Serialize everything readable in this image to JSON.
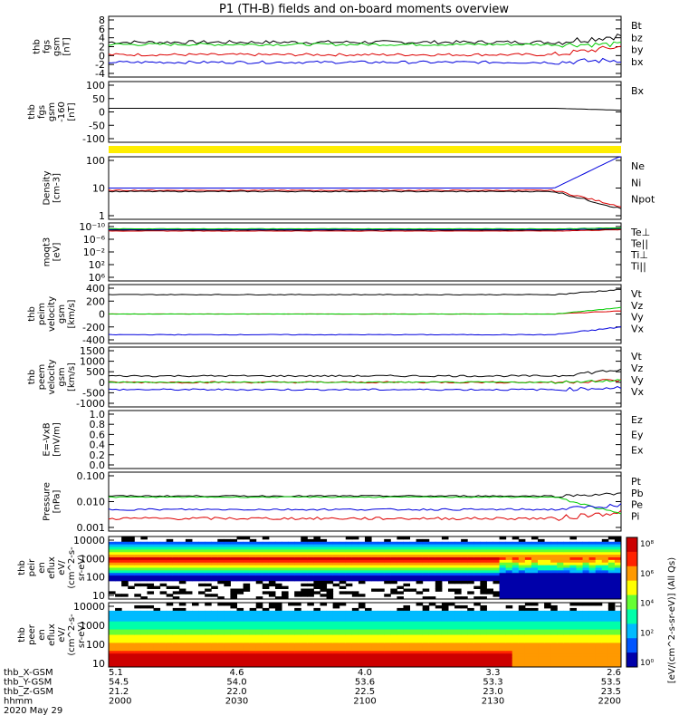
{
  "title": "P1 (TH-B) fields and on-board moments overview",
  "colors": {
    "black": "#000000",
    "red": "#dd0000",
    "green": "#00cc00",
    "blue": "#0000dd",
    "yellow": "#ffee00"
  },
  "chart_data": [
    {
      "id": "fgs",
      "type": "line",
      "ylabel": [
        "thb",
        "fgs",
        "gsm",
        "[nT]"
      ],
      "yticks": [
        "-4",
        "-2",
        "0",
        "2",
        "4",
        "6",
        "8"
      ],
      "ylim": [
        -4,
        8
      ],
      "series": [
        {
          "name": "Bt",
          "color": "black",
          "level": 3,
          "noise": 0.4,
          "end": 4.5
        },
        {
          "name": "bz",
          "color": "red",
          "level": 0.2,
          "noise": 0.3,
          "end": 2.0
        },
        {
          "name": "by",
          "color": "green",
          "level": 2.5,
          "noise": 0.3,
          "end": 2.5
        },
        {
          "name": "bx",
          "color": "blue",
          "level": -1.5,
          "noise": 0.3,
          "end": -1.0
        }
      ]
    },
    {
      "id": "fgs_dsl",
      "type": "line",
      "ylabel": [
        "thb",
        "fgs",
        "gsm",
        "-160",
        "[nT]"
      ],
      "yticks": [
        "-100",
        "-50",
        "0",
        "50",
        "100"
      ],
      "ylim": [
        -120,
        100
      ],
      "series": [
        {
          "name": "Bx",
          "color": "black",
          "level": 5,
          "noise": 0,
          "end": -3
        }
      ]
    },
    {
      "id": "density",
      "type": "line",
      "ylabel": [
        "Density",
        "[cm-3]"
      ],
      "yticks": [
        "1",
        "10",
        "100"
      ],
      "ylim": [
        0,
        2.4
      ],
      "log": true,
      "series": [
        {
          "name": "Ne",
          "color": "red",
          "level": 1.1,
          "noise": 0.02,
          "end": 0.4
        },
        {
          "name": "Ni",
          "color": "black",
          "level": 1.05,
          "noise": 0.02,
          "end": 0.3
        },
        {
          "name": "Npot",
          "color": "blue",
          "level": 1.2,
          "noise": 0,
          "end": 2.6
        }
      ]
    },
    {
      "id": "temp",
      "type": "line",
      "ylabel": [
        "moqt3",
        "[eV]"
      ],
      "yticks": [
        "10⁶",
        "10²",
        "10⁻²",
        "10⁻⁶",
        "10⁻¹⁰"
      ],
      "ylim": [
        -12,
        4
      ],
      "series": [
        {
          "name": "Te⊥",
          "color": "red",
          "level": 2.6,
          "noise": 0.05,
          "end": 3
        },
        {
          "name": "Te||",
          "color": "black",
          "level": 2.9,
          "noise": 0.05,
          "end": 3.2
        },
        {
          "name": "Ti⊥",
          "color": "blue",
          "level": 3.1,
          "noise": 0.05,
          "end": 3.5
        },
        {
          "name": "Ti||",
          "color": "green",
          "level": 3.3,
          "noise": 0.05,
          "end": 3.6
        }
      ]
    },
    {
      "id": "peim",
      "type": "line",
      "ylabel": [
        "thb",
        "peim",
        "velocity",
        "gsm",
        "[km/s]"
      ],
      "yticks": [
        "-400",
        "-200",
        "0",
        "200",
        "400"
      ],
      "ylim": [
        -400,
        400
      ],
      "series": [
        {
          "name": "Vt",
          "color": "black",
          "level": 300,
          "noise": 5,
          "end": 380
        },
        {
          "name": "Vz",
          "color": "red",
          "level": 0,
          "noise": 2,
          "end": 50
        },
        {
          "name": "Vy",
          "color": "green",
          "level": 0,
          "noise": 2,
          "end": 100
        },
        {
          "name": "Vx",
          "color": "blue",
          "level": -320,
          "noise": 5,
          "end": -200
        }
      ]
    },
    {
      "id": "peem",
      "type": "line",
      "ylabel": [
        "thb",
        "peem",
        "velocity",
        "gsm",
        "[km/s]"
      ],
      "yticks": [
        "-1000",
        "-500",
        "0",
        "500",
        "1000",
        "1500"
      ],
      "ylim": [
        -1000,
        1500
      ],
      "series": [
        {
          "name": "Vt",
          "color": "black",
          "level": 300,
          "noise": 40,
          "end": 600
        },
        {
          "name": "Vz",
          "color": "red",
          "level": 0,
          "noise": 40,
          "end": 100
        },
        {
          "name": "Vy",
          "color": "green",
          "level": 0,
          "noise": 30,
          "end": 100
        },
        {
          "name": "Vx",
          "color": "blue",
          "level": -350,
          "noise": 40,
          "end": -250
        }
      ]
    },
    {
      "id": "efield",
      "type": "line",
      "ylabel": [
        "E=-VxB",
        "[mV/m]"
      ],
      "yticks": [
        "0.0",
        "0.2",
        "0.4",
        "0.6",
        "0.8",
        "1.0"
      ],
      "ylim": [
        0,
        1
      ],
      "series": [
        {
          "name": "Ez",
          "color": "red",
          "level": null
        },
        {
          "name": "Ey",
          "color": "green",
          "level": null
        },
        {
          "name": "Ex",
          "color": "blue",
          "level": null
        }
      ]
    },
    {
      "id": "pressure",
      "type": "line",
      "ylabel": [
        "Pressure",
        "[nPa]"
      ],
      "yticks": [
        "0.001",
        "0.010",
        "0.100"
      ],
      "ylim": [
        -3,
        -0.7
      ],
      "log": true,
      "series": [
        {
          "name": "Pt",
          "color": "black",
          "level": -1.6,
          "noise": 0.03,
          "end": -1.5
        },
        {
          "name": "Pb",
          "color": "red",
          "level": -2.6,
          "noise": 0.06,
          "end": -2.3
        },
        {
          "name": "Pe",
          "color": "green",
          "level": -1.65,
          "noise": 0.02,
          "end": -2.4
        },
        {
          "name": "Pi",
          "color": "blue",
          "level": -2.2,
          "noise": 0.04,
          "end": -2.0
        }
      ]
    },
    {
      "id": "peir_eflux",
      "type": "heatmap",
      "ylabel": [
        "thb",
        "peir",
        "en",
        "eflux",
        "eV/",
        "(cm^2-s-",
        "sr-eV)"
      ],
      "yticks": [
        "10",
        "100",
        "1000",
        "10000"
      ],
      "ylim": [
        5,
        20000
      ],
      "log": true
    },
    {
      "id": "peer_eflux",
      "type": "heatmap",
      "ylabel": [
        "thb",
        "peer",
        "en",
        "eflux",
        "eV/",
        "(cm^2-s-",
        "sr-eV)"
      ],
      "yticks": [
        "10",
        "100",
        "1000",
        "10000"
      ],
      "ylim": [
        5,
        20000
      ],
      "log": true
    }
  ],
  "colorbar": {
    "label": "[eV/(cm^2-s-sr-eV)] (All Qs)",
    "ticks": [
      "10⁸",
      "10⁶",
      "10⁴",
      "10²",
      "10⁰"
    ]
  },
  "xaxis": {
    "rows": [
      {
        "label": "thb_X-GSM",
        "values": [
          "5.1",
          "4.6",
          "4.0",
          "3.3",
          "2.6"
        ]
      },
      {
        "label": "thb_Y-GSM",
        "values": [
          "54.5",
          "54.0",
          "53.6",
          "53.3",
          "53.5"
        ]
      },
      {
        "label": "thb_Z-GSM",
        "values": [
          "21.2",
          "22.0",
          "22.5",
          "23.0",
          "23.5"
        ]
      },
      {
        "label": "hhmm",
        "values": [
          "2000",
          "2030",
          "2100",
          "2130",
          "2200"
        ]
      }
    ],
    "date": "2020 May 29"
  }
}
